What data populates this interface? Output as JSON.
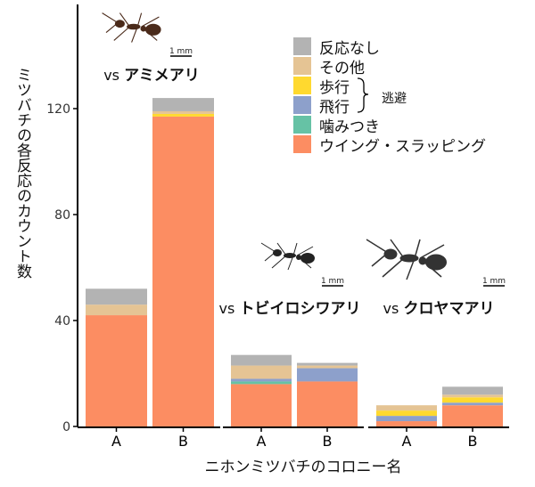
{
  "chart_data": {
    "type": "bar",
    "stacked": true,
    "ylabel": "ミツバチの各反応のカウント数",
    "xlabel": "ニホンミツバチのコロニー名",
    "ylim": [
      0,
      150
    ],
    "yticks": [
      0,
      40,
      80,
      120
    ],
    "grid": false,
    "legend_position": "top-right",
    "legend": [
      {
        "key": "none",
        "label": "反応なし",
        "color": "#b3b3b3"
      },
      {
        "key": "other",
        "label": "その他",
        "color": "#e5c494"
      },
      {
        "key": "walk",
        "label": "歩行",
        "color": "#ffd92f"
      },
      {
        "key": "fly",
        "label": "飛行",
        "color": "#8da0cb"
      },
      {
        "key": "bite",
        "label": "噛みつき",
        "color": "#66c2a5"
      },
      {
        "key": "wing",
        "label": "ウイング・スラッピング",
        "color": "#fc8d62"
      }
    ],
    "legend_group_label": "逃避",
    "panels": [
      {
        "prefix": "vs",
        "title": "アミメアリ",
        "scale_label": "1 mm",
        "categories": [
          "A",
          "B"
        ],
        "series": {
          "wing": [
            42,
            117
          ],
          "bite": [
            0,
            0
          ],
          "fly": [
            0,
            0
          ],
          "walk": [
            0,
            1
          ],
          "other": [
            4,
            1
          ],
          "none": [
            6,
            5
          ]
        }
      },
      {
        "prefix": "vs",
        "title": "トビイロシワアリ",
        "scale_label": "1 mm",
        "categories": [
          "A",
          "B"
        ],
        "series": {
          "wing": [
            16,
            17
          ],
          "bite": [
            1,
            0
          ],
          "fly": [
            1,
            5
          ],
          "walk": [
            0,
            0
          ],
          "other": [
            5,
            1
          ],
          "none": [
            4,
            1
          ]
        }
      },
      {
        "prefix": "vs",
        "title": "クロヤマアリ",
        "scale_label": "1 mm",
        "categories": [
          "A",
          "B"
        ],
        "series": {
          "wing": [
            2,
            8
          ],
          "bite": [
            0,
            0
          ],
          "fly": [
            2,
            1
          ],
          "walk": [
            2,
            2
          ],
          "other": [
            2,
            1
          ],
          "none": [
            0,
            3
          ]
        }
      }
    ]
  }
}
